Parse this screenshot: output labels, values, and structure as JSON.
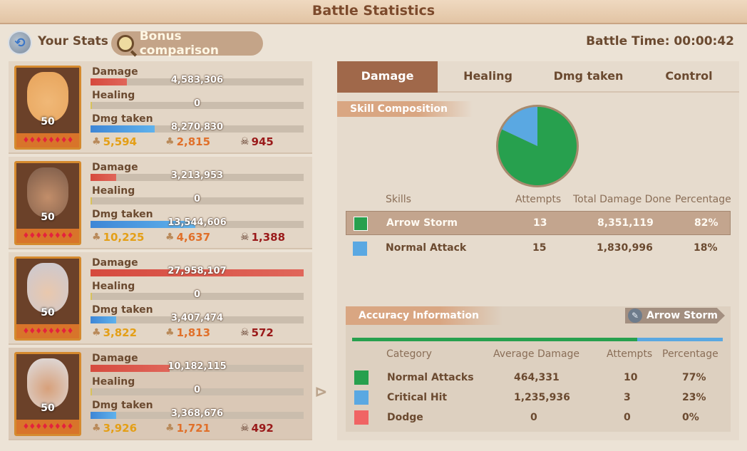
{
  "header": {
    "title": "Battle Statistics"
  },
  "top": {
    "your_stats": "Your Stats",
    "bonus_comparison": "Bonus comparison",
    "battle_time": "Battle Time: 00:00:42"
  },
  "labels": {
    "damage": "Damage",
    "healing": "Healing",
    "dmg_taken": "Dmg taken"
  },
  "heroes": [
    {
      "level": "50",
      "damage": "4,583,306",
      "damage_frac": 0.17,
      "healing": "0",
      "healing_frac": 0.0,
      "dmg_taken": "8,270,830",
      "dmg_taken_frac": 0.3,
      "stat1": "5,594",
      "stat2": "2,815",
      "kills": "945",
      "stars": "♦♦♦♦♦♦♦♦"
    },
    {
      "level": "50",
      "damage": "3,213,953",
      "damage_frac": 0.12,
      "healing": "0",
      "healing_frac": 0.0,
      "dmg_taken": "13,544,606",
      "dmg_taken_frac": 0.49,
      "stat1": "10,225",
      "stat2": "4,637",
      "kills": "1,388",
      "stars": "♦♦♦♦♦♦♦♦"
    },
    {
      "level": "50",
      "damage": "27,958,107",
      "damage_frac": 1.0,
      "healing": "0",
      "healing_frac": 0.0,
      "dmg_taken": "3,407,474",
      "dmg_taken_frac": 0.12,
      "stat1": "3,822",
      "stat2": "1,813",
      "kills": "572",
      "stars": "♦♦♦♦♦♦♦♦"
    },
    {
      "level": "50",
      "damage": "10,182,115",
      "damage_frac": 0.37,
      "healing": "0",
      "healing_frac": 0.0,
      "dmg_taken": "3,368,676",
      "dmg_taken_frac": 0.12,
      "stat1": "3,926",
      "stat2": "1,721",
      "kills": "492",
      "stars": "♦♦♦♦♦♦♦♦"
    }
  ],
  "tabs": [
    "Damage",
    "Healing",
    "Dmg taken",
    "Control"
  ],
  "skill_composition": {
    "title": "Skill Composition",
    "headers": {
      "skills": "Skills",
      "attempts": "Attempts",
      "total": "Total Damage Done",
      "percentage": "Percentage"
    },
    "rows": [
      {
        "name": "Arrow Storm",
        "attempts": "13",
        "total": "8,351,119",
        "percentage": "82%",
        "color": "#27a04e"
      },
      {
        "name": "Normal Attack",
        "attempts": "15",
        "total": "1,830,996",
        "percentage": "18%",
        "color": "#5aa8e2"
      }
    ]
  },
  "accuracy": {
    "title": "Accuracy Information",
    "skill": "Arrow Storm",
    "normal_frac": 0.77,
    "headers": {
      "category": "Category",
      "avg": "Average Damage",
      "attempts": "Attempts",
      "percentage": "Percentage"
    },
    "rows": [
      {
        "category": "Normal Attacks",
        "avg": "464,331",
        "attempts": "10",
        "percentage": "77%",
        "color": "#27a04e"
      },
      {
        "category": "Critical Hit",
        "avg": "1,235,936",
        "attempts": "3",
        "percentage": "23%",
        "color": "#5aa8e2"
      },
      {
        "category": "Dodge",
        "avg": "0",
        "attempts": "0",
        "percentage": "0%",
        "color": "#f06464"
      }
    ]
  }
}
